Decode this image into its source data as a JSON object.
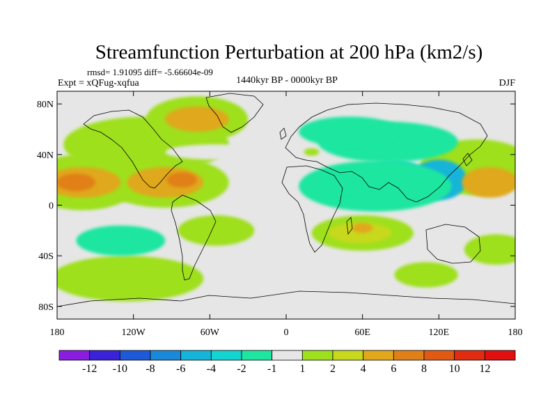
{
  "chart_data": {
    "type": "heatmap",
    "title": "Streamfunction Perturbation at 200 hPa (km2/s)",
    "stats": "rmsd= 1.91095 diff= -5.66604e-09",
    "left_label": "Expt = xQFug-xqfua",
    "center_label": "1440kyr BP - 0000kyr BP",
    "right_label": "DJF",
    "x_range": [
      -180,
      180
    ],
    "y_range": [
      -90,
      90
    ],
    "xticks": [
      {
        "value": -180,
        "label": "180"
      },
      {
        "value": -120,
        "label": "120W"
      },
      {
        "value": -60,
        "label": "60W"
      },
      {
        "value": 0,
        "label": "0"
      },
      {
        "value": 60,
        "label": "60E"
      },
      {
        "value": 120,
        "label": "120E"
      },
      {
        "value": 180,
        "label": "180"
      }
    ],
    "yticks": [
      {
        "value": 80,
        "label": "80N"
      },
      {
        "value": 40,
        "label": "40N"
      },
      {
        "value": 0,
        "label": "0"
      },
      {
        "value": -40,
        "label": "40S"
      },
      {
        "value": -80,
        "label": "80S"
      }
    ],
    "levels": [
      "-12",
      "-10",
      "-8",
      "-6",
      "-4",
      "-2",
      "-1",
      "1",
      "2",
      "4",
      "6",
      "8",
      "10",
      "12"
    ],
    "colors": [
      "#8a1ee0",
      "#3a22d8",
      "#1e5ad8",
      "#1a8ad8",
      "#16b4d8",
      "#14d4d0",
      "#1ee6a0",
      "#e6e6e6",
      "#9ee01e",
      "#c8d81c",
      "#e0a81a",
      "#e08018",
      "#e05a14",
      "#e02c10",
      "#e01010"
    ],
    "regions": [
      {
        "lon": 120,
        "lat": 20,
        "rx": 22,
        "ry": 16,
        "level": -6
      },
      {
        "lon": 85,
        "lat": 18,
        "rx": 28,
        "ry": 18,
        "level": -4
      },
      {
        "lon": 70,
        "lat": 15,
        "rx": 60,
        "ry": 20,
        "level": -2
      },
      {
        "lon": 80,
        "lat": 50,
        "rx": 55,
        "ry": 16,
        "level": -2
      },
      {
        "lon": 50,
        "lat": 58,
        "rx": 40,
        "ry": 12,
        "level": -2
      },
      {
        "lon": -130,
        "lat": -28,
        "rx": 35,
        "ry": 12,
        "level": -2
      },
      {
        "lon": -55,
        "lat": 42,
        "rx": 40,
        "ry": 6,
        "level": -1
      },
      {
        "lon": 45,
        "lat": 18,
        "rx": 25,
        "ry": 10,
        "level": -2
      },
      {
        "lon": -160,
        "lat": 18,
        "rx": 30,
        "ry": 12,
        "level": 4
      },
      {
        "lon": -165,
        "lat": 18,
        "rx": 15,
        "ry": 7,
        "level": 6
      },
      {
        "lon": -95,
        "lat": 18,
        "rx": 30,
        "ry": 12,
        "level": 4
      },
      {
        "lon": -82,
        "lat": 20,
        "rx": 12,
        "ry": 6,
        "level": 6
      },
      {
        "lon": -70,
        "lat": 68,
        "rx": 25,
        "ry": 10,
        "level": 4
      },
      {
        "lon": 160,
        "lat": 18,
        "rx": 22,
        "ry": 12,
        "level": 4
      },
      {
        "lon": 58,
        "lat": -22,
        "rx": 25,
        "ry": 8,
        "level": 2
      },
      {
        "lon": 60,
        "lat": -18,
        "rx": 8,
        "ry": 4,
        "level": 4
      }
    ],
    "positive_regions": [
      {
        "lon": -160,
        "lat": 18,
        "rx": 45,
        "ry": 22
      },
      {
        "lon": -95,
        "lat": 18,
        "rx": 50,
        "ry": 20
      },
      {
        "lon": -110,
        "lat": 48,
        "rx": 65,
        "ry": 22
      },
      {
        "lon": -70,
        "lat": 68,
        "rx": 40,
        "ry": 18
      },
      {
        "lon": -125,
        "lat": -58,
        "rx": 60,
        "ry": 18
      },
      {
        "lon": -55,
        "lat": -20,
        "rx": 30,
        "ry": 12
      },
      {
        "lon": 60,
        "lat": -22,
        "rx": 40,
        "ry": 14
      },
      {
        "lon": 110,
        "lat": -55,
        "rx": 25,
        "ry": 10
      },
      {
        "lon": 150,
        "lat": 30,
        "rx": 45,
        "ry": 22
      },
      {
        "lon": 165,
        "lat": -35,
        "rx": 25,
        "ry": 12
      },
      {
        "lon": 20,
        "lat": 42,
        "rx": 6,
        "ry": 3
      }
    ]
  },
  "colorbar_label_colors": {
    "text": "#000000",
    "axis": "#000000"
  }
}
